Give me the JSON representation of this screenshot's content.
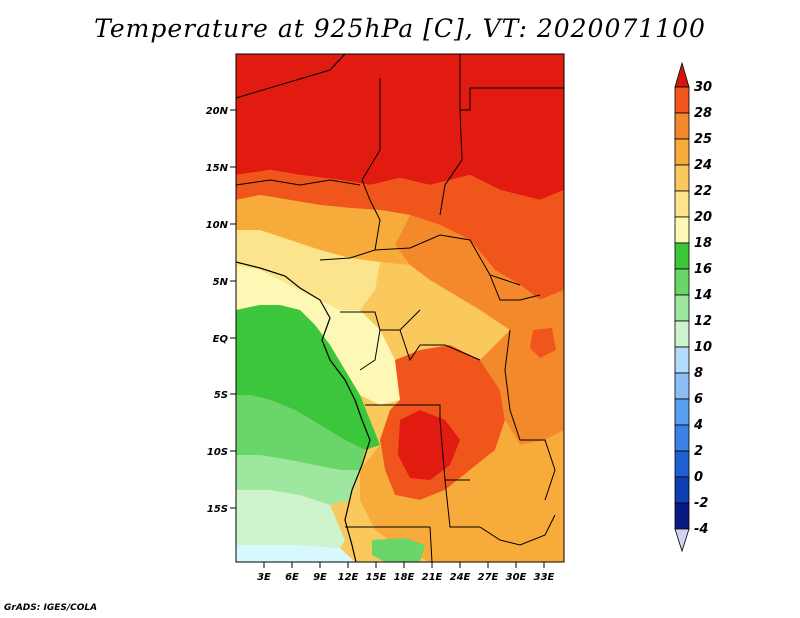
{
  "title": "Temperature at 925hPa [C], VT: 2020071100",
  "footer": "GrADS: IGES/COLA",
  "axes": {
    "lat_labels": [
      "20N",
      "15N",
      "10N",
      "5N",
      "EQ",
      "5S",
      "10S",
      "15S"
    ],
    "lon_labels": [
      "3E",
      "6E",
      "9E",
      "12E",
      "15E",
      "18E",
      "21E",
      "24E",
      "27E",
      "30E",
      "33E"
    ]
  },
  "colorbar": {
    "labels": [
      "30",
      "28",
      "25",
      "24",
      "22",
      "20",
      "18",
      "16",
      "14",
      "12",
      "10",
      "8",
      "6",
      "4",
      "2",
      "0",
      "-2",
      "-4"
    ],
    "colors": [
      "#e11b0f",
      "#f0551b",
      "#f4892b",
      "#f7ab3a",
      "#f9c95e",
      "#fbe48c",
      "#fdf8b5",
      "#3cc63c",
      "#6ad66a",
      "#9ee79e",
      "#cdf4cd",
      "#b4dcfa",
      "#8cbef5",
      "#5aa0f0",
      "#3c82e6",
      "#1e5fd2",
      "#0f3fb4",
      "#0a1a82"
    ],
    "top_triangle": "#d2170a",
    "bottom_triangle": "#d2d2f5"
  },
  "map_colors": {
    "frame_bg": "#f9c95e",
    "hot": "#e11b0f",
    "warm": "#f0551b",
    "orange": "#f4892b",
    "amber": "#f7ab3a",
    "lightamber": "#fbe48c",
    "pale": "#fdf8b5",
    "green": "#3cc63c",
    "lightgreen": "#6ad66a",
    "palegreen": "#9ee79e",
    "verypale": "#cdf4cd",
    "ocean": "#d8f8ff"
  }
}
